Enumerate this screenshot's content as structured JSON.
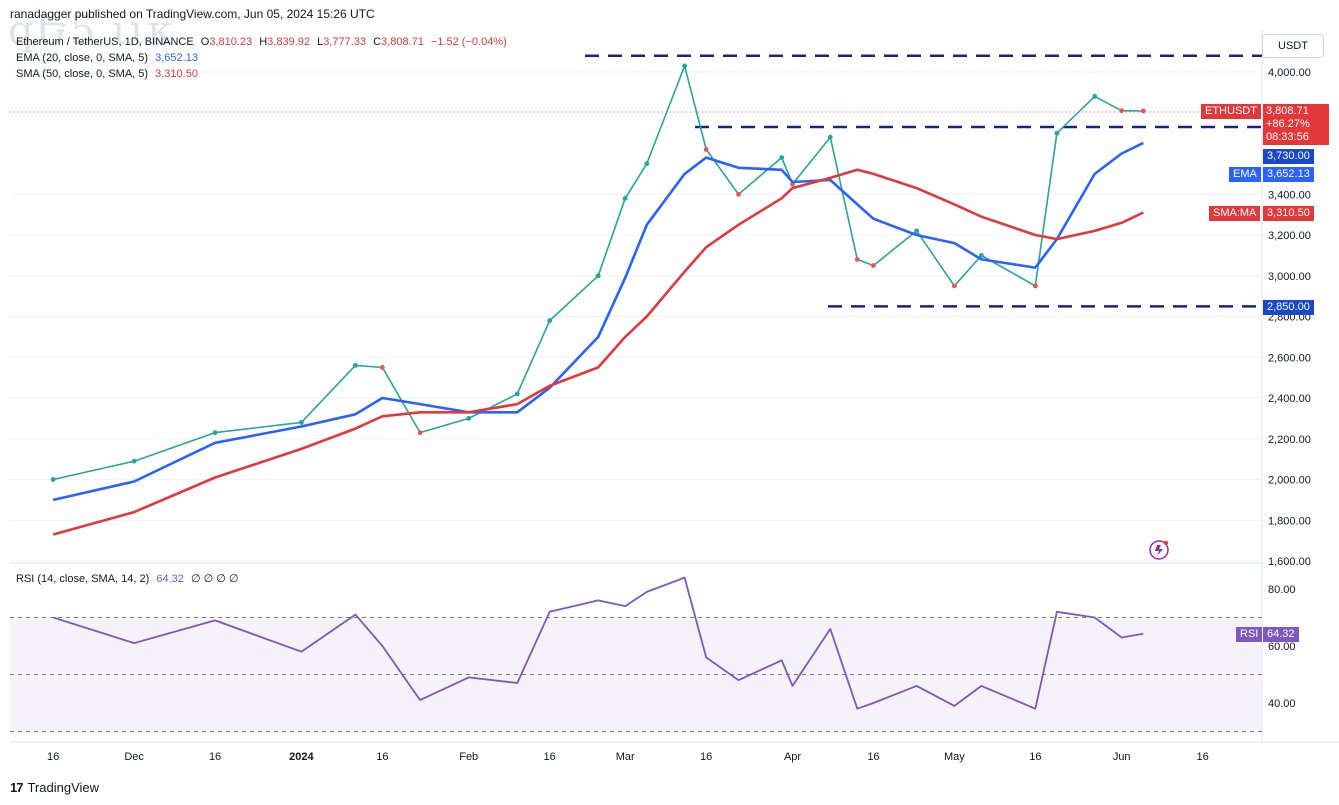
{
  "caption": "ranadagger published on TradingView.com, Jun 05, 2024 15:26 UTC",
  "watermark": "ԛԵ5 ιικ",
  "symbol_title": "Ethereum / TetherUS, 1D, BINANCE",
  "ohlc": {
    "o_label": "O",
    "o": "3,810.23",
    "h_label": "H",
    "h": "3,839.92",
    "l_label": "L",
    "l": "3,777.33",
    "c_label": "C",
    "c": "3,808.71",
    "change": "−1.52 (−0.04%)"
  },
  "ema_legend": {
    "label": "EMA (20, close, 0, SMA, 5)",
    "value": "3,652.13"
  },
  "sma_legend": {
    "label": "SMA (50, close, 0, SMA, 5)",
    "value": "3,310.50"
  },
  "currency_button": "USDT",
  "colors": {
    "up": "#26a69a",
    "down": "#ef5350",
    "ema": "#2962ff",
    "sma": "#e4373a",
    "rsi": "#7e57c2",
    "level": "#1a237e",
    "tag_blue": "#1848cc",
    "tag_red": "#e4373a"
  },
  "price_tags": {
    "symbol": "ETHUSDT",
    "price": "3,808.71",
    "pct": "+86.27%",
    "countdown": "08:33:56",
    "resistance_mid": "3,730.00",
    "ema_name": "EMA",
    "ema_value": "3,652.13",
    "sma_name": "SMA:MA",
    "sma_value": "3,310.50",
    "support": "2,850.00"
  },
  "rsi": {
    "legend": "RSI (14, close, SMA, 14, 2)",
    "value": "64.32",
    "placeholders": "∅ ∅ ∅ ∅",
    "tag_name": "RSI",
    "tag_value": "64.32"
  },
  "footer": {
    "brand": "TradingView",
    "mark": "17"
  },
  "chart_data": {
    "type": "line",
    "title": "Ethereum / TetherUS, 1D, BINANCE",
    "x_ticks": [
      "16",
      "Dec",
      "16",
      "2024",
      "16",
      "Feb",
      "16",
      "Mar",
      "16",
      "Apr",
      "16",
      "May",
      "16",
      "Jun",
      "16"
    ],
    "y_ticks": [
      1600,
      1800,
      2000,
      2200,
      2400,
      2600,
      2800,
      3000,
      3200,
      3400,
      4000
    ],
    "ylim": [
      1600,
      4100
    ],
    "horizontal_levels": [
      4080,
      3730,
      2850
    ],
    "series": [
      {
        "name": "Ethereum / TetherUS",
        "x": [
          "2023-11-16",
          "2023-12-01",
          "2023-12-16",
          "2024-01-01",
          "2024-01-11",
          "2024-01-16",
          "2024-01-23",
          "2024-02-01",
          "2024-02-10",
          "2024-02-16",
          "2024-02-25",
          "2024-03-01",
          "2024-03-05",
          "2024-03-12",
          "2024-03-16",
          "2024-03-22",
          "2024-03-30",
          "2024-04-01",
          "2024-04-08",
          "2024-04-13",
          "2024-04-16",
          "2024-04-24",
          "2024-05-01",
          "2024-05-06",
          "2024-05-16",
          "2024-05-20",
          "2024-05-27",
          "2024-06-01",
          "2024-06-05"
        ],
        "values": [
          2000,
          2090,
          2230,
          2280,
          2560,
          2550,
          2230,
          2300,
          2420,
          2780,
          3000,
          3380,
          3550,
          4030,
          3620,
          3400,
          3580,
          3450,
          3680,
          3080,
          3050,
          3220,
          2950,
          3100,
          2950,
          3700,
          3880,
          3810,
          3808.71
        ]
      },
      {
        "name": "EMA (20, close, 0, SMA, 5)",
        "x": [
          "2023-11-16",
          "2023-12-01",
          "2023-12-16",
          "2024-01-01",
          "2024-01-11",
          "2024-01-16",
          "2024-01-23",
          "2024-02-01",
          "2024-02-10",
          "2024-02-16",
          "2024-02-25",
          "2024-03-01",
          "2024-03-05",
          "2024-03-12",
          "2024-03-16",
          "2024-03-22",
          "2024-03-30",
          "2024-04-01",
          "2024-04-08",
          "2024-04-13",
          "2024-04-16",
          "2024-04-24",
          "2024-05-01",
          "2024-05-06",
          "2024-05-16",
          "2024-05-20",
          "2024-05-27",
          "2024-06-01",
          "2024-06-05"
        ],
        "values": [
          1900,
          1990,
          2180,
          2260,
          2320,
          2400,
          2370,
          2330,
          2330,
          2450,
          2700,
          2990,
          3250,
          3500,
          3580,
          3530,
          3520,
          3460,
          3470,
          3350,
          3280,
          3200,
          3160,
          3080,
          3040,
          3180,
          3500,
          3600,
          3652.13
        ]
      },
      {
        "name": "SMA (50, close, 0, SMA, 5)",
        "x": [
          "2023-11-16",
          "2023-12-01",
          "2023-12-16",
          "2024-01-01",
          "2024-01-11",
          "2024-01-16",
          "2024-01-23",
          "2024-02-01",
          "2024-02-10",
          "2024-02-16",
          "2024-02-25",
          "2024-03-01",
          "2024-03-05",
          "2024-03-12",
          "2024-03-16",
          "2024-03-22",
          "2024-03-30",
          "2024-04-01",
          "2024-04-08",
          "2024-04-13",
          "2024-04-16",
          "2024-04-24",
          "2024-05-01",
          "2024-05-06",
          "2024-05-16",
          "2024-05-20",
          "2024-05-27",
          "2024-06-01",
          "2024-06-05"
        ],
        "values": [
          1730,
          1840,
          2010,
          2150,
          2250,
          2310,
          2330,
          2330,
          2370,
          2460,
          2550,
          2700,
          2800,
          3020,
          3140,
          3250,
          3380,
          3430,
          3480,
          3520,
          3500,
          3430,
          3350,
          3290,
          3200,
          3180,
          3220,
          3260,
          3310.5
        ]
      }
    ],
    "rsi_series": {
      "name": "RSI (14, close, SMA, 14, 2)",
      "y_ticks": [
        40,
        60,
        80
      ],
      "ylim": [
        30,
        85
      ],
      "bands": [
        70,
        50,
        30
      ],
      "x": [
        "2023-11-16",
        "2023-12-01",
        "2023-12-16",
        "2024-01-01",
        "2024-01-11",
        "2024-01-16",
        "2024-01-23",
        "2024-02-01",
        "2024-02-10",
        "2024-02-16",
        "2024-02-25",
        "2024-03-01",
        "2024-03-05",
        "2024-03-12",
        "2024-03-16",
        "2024-03-22",
        "2024-03-30",
        "2024-04-01",
        "2024-04-08",
        "2024-04-13",
        "2024-04-16",
        "2024-04-24",
        "2024-05-01",
        "2024-05-06",
        "2024-05-16",
        "2024-05-20",
        "2024-05-27",
        "2024-06-01",
        "2024-06-05"
      ],
      "values": [
        70,
        61,
        69,
        58,
        71,
        60,
        41,
        49,
        47,
        72,
        76,
        74,
        79,
        84,
        56,
        48,
        55,
        46,
        66,
        38,
        40,
        46,
        39,
        46,
        38,
        72,
        70,
        63,
        64.32
      ]
    }
  }
}
